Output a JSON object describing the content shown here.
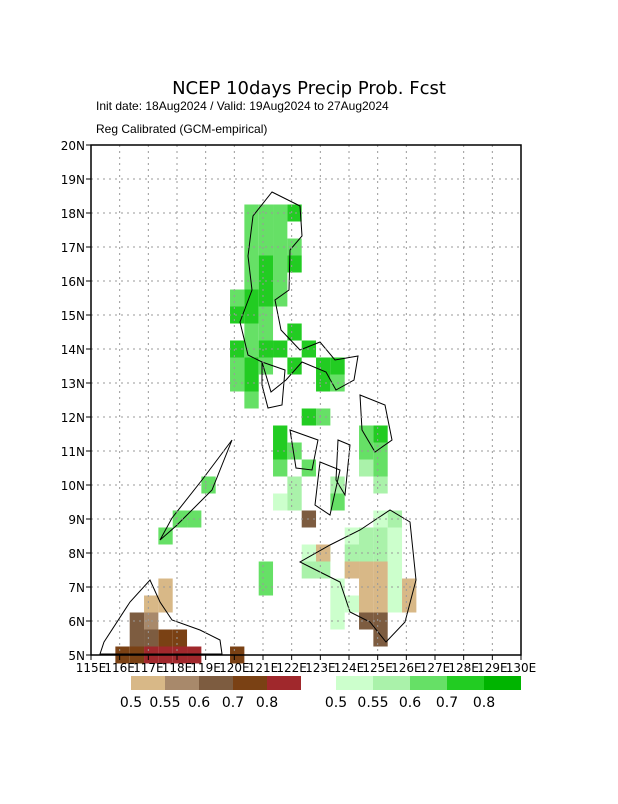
{
  "chart_data": {
    "type": "map",
    "title": "NCEP 10days Precip Prob. Fcst",
    "subtitle": "Init date: 18Aug2024 / Valid: 19Aug2024 to 27Aug2024",
    "note": "Reg Calibrated (GCM-empirical)",
    "xlim": [
      115,
      130
    ],
    "ylim": [
      5,
      20
    ],
    "xticks": [
      {
        "value": 115,
        "label": "115E"
      },
      {
        "value": 116,
        "label": "116E"
      },
      {
        "value": 117,
        "label": "117E"
      },
      {
        "value": 118,
        "label": "118E"
      },
      {
        "value": 119,
        "label": "119E"
      },
      {
        "value": 120,
        "label": "120E"
      },
      {
        "value": 121,
        "label": "121E"
      },
      {
        "value": 122,
        "label": "122E"
      },
      {
        "value": 123,
        "label": "123E"
      },
      {
        "value": 124,
        "label": "124E"
      },
      {
        "value": 125,
        "label": "125E"
      },
      {
        "value": 126,
        "label": "126E"
      },
      {
        "value": 127,
        "label": "127E"
      },
      {
        "value": 128,
        "label": "128E"
      },
      {
        "value": 129,
        "label": "129E"
      },
      {
        "value": 130,
        "label": "130E"
      }
    ],
    "yticks": [
      {
        "value": 5,
        "label": "5N"
      },
      {
        "value": 6,
        "label": "6N"
      },
      {
        "value": 7,
        "label": "7N"
      },
      {
        "value": 8,
        "label": "8N"
      },
      {
        "value": 9,
        "label": "9N"
      },
      {
        "value": 10,
        "label": "10N"
      },
      {
        "value": 11,
        "label": "11N"
      },
      {
        "value": 12,
        "label": "12N"
      },
      {
        "value": 13,
        "label": "13N"
      },
      {
        "value": 14,
        "label": "14N"
      },
      {
        "value": 15,
        "label": "15N"
      },
      {
        "value": 16,
        "label": "16N"
      },
      {
        "value": 17,
        "label": "17N"
      },
      {
        "value": 18,
        "label": "18N"
      },
      {
        "value": 19,
        "label": "19N"
      },
      {
        "value": 20,
        "label": "20N"
      }
    ],
    "grid": true,
    "cell_size": 0.5,
    "levels": [
      0.5,
      0.55,
      0.6,
      0.7,
      0.8
    ],
    "dry_colors": [
      "#d8b887",
      "#a8896b",
      "#7d5c40",
      "#7a4114",
      "#a0282c"
    ],
    "wet_colors": [
      "#ccffcc",
      "#aaf2aa",
      "#66e066",
      "#22cc22",
      "#00b400"
    ],
    "wet_cells": [
      [
        120.6,
        18.0,
        0.65
      ],
      [
        121.1,
        18.0,
        0.65
      ],
      [
        121.6,
        18.0,
        0.65
      ],
      [
        122.1,
        18.0,
        0.75
      ],
      [
        120.6,
        17.5,
        0.65
      ],
      [
        121.1,
        17.5,
        0.65
      ],
      [
        121.6,
        17.5,
        0.65
      ],
      [
        120.6,
        17.0,
        0.65
      ],
      [
        121.1,
        17.0,
        0.65
      ],
      [
        121.6,
        17.0,
        0.65
      ],
      [
        122.1,
        17.0,
        0.65
      ],
      [
        120.6,
        16.5,
        0.65
      ],
      [
        121.1,
        16.5,
        0.75
      ],
      [
        121.6,
        16.5,
        0.65
      ],
      [
        122.1,
        16.5,
        0.75
      ],
      [
        120.6,
        16.0,
        0.65
      ],
      [
        121.1,
        16.0,
        0.75
      ],
      [
        121.6,
        16.0,
        0.65
      ],
      [
        120.1,
        15.5,
        0.65
      ],
      [
        120.6,
        15.5,
        0.75
      ],
      [
        121.1,
        15.5,
        0.75
      ],
      [
        121.6,
        15.5,
        0.65
      ],
      [
        120.1,
        15.0,
        0.75
      ],
      [
        120.6,
        15.0,
        0.75
      ],
      [
        121.1,
        15.0,
        0.65
      ],
      [
        120.6,
        14.5,
        0.65
      ],
      [
        121.1,
        14.5,
        0.65
      ],
      [
        122.1,
        14.5,
        0.75
      ],
      [
        120.1,
        14.0,
        0.75
      ],
      [
        120.6,
        14.0,
        0.65
      ],
      [
        121.1,
        14.0,
        0.75
      ],
      [
        121.6,
        14.0,
        0.75
      ],
      [
        122.6,
        14.0,
        0.75
      ],
      [
        120.1,
        13.5,
        0.65
      ],
      [
        120.6,
        13.5,
        0.75
      ],
      [
        121.1,
        13.5,
        0.65
      ],
      [
        122.1,
        13.5,
        0.75
      ],
      [
        123.1,
        13.5,
        0.75
      ],
      [
        123.6,
        13.5,
        0.75
      ],
      [
        120.1,
        13.0,
        0.65
      ],
      [
        120.6,
        13.0,
        0.75
      ],
      [
        123.1,
        13.0,
        0.75
      ],
      [
        123.6,
        13.0,
        0.65
      ],
      [
        120.6,
        12.5,
        0.65
      ],
      [
        122.6,
        12.0,
        0.75
      ],
      [
        123.1,
        12.0,
        0.65
      ],
      [
        121.6,
        11.5,
        0.75
      ],
      [
        124.6,
        11.5,
        0.65
      ],
      [
        125.1,
        11.5,
        0.75
      ],
      [
        121.6,
        11.0,
        0.75
      ],
      [
        122.1,
        11.0,
        0.65
      ],
      [
        124.6,
        11.0,
        0.65
      ],
      [
        125.1,
        11.0,
        0.65
      ],
      [
        121.6,
        10.5,
        0.65
      ],
      [
        122.6,
        10.5,
        0.65
      ],
      [
        124.6,
        10.5,
        0.57
      ],
      [
        125.1,
        10.5,
        0.65
      ],
      [
        119.1,
        10.0,
        0.65
      ],
      [
        122.1,
        10.0,
        0.57
      ],
      [
        123.6,
        10.0,
        0.57
      ],
      [
        125.1,
        10.0,
        0.57
      ],
      [
        121.6,
        9.5,
        0.52
      ],
      [
        122.1,
        9.5,
        0.57
      ],
      [
        123.6,
        9.5,
        0.65
      ],
      [
        118.1,
        9.0,
        0.65
      ],
      [
        118.6,
        9.0,
        0.65
      ],
      [
        125.1,
        9.0,
        0.52
      ],
      [
        125.6,
        9.0,
        0.57
      ],
      [
        117.6,
        8.5,
        0.65
      ],
      [
        124.1,
        8.5,
        0.52
      ],
      [
        124.6,
        8.5,
        0.57
      ],
      [
        125.1,
        8.5,
        0.57
      ],
      [
        125.6,
        8.5,
        0.52
      ],
      [
        122.6,
        8.0,
        0.52
      ],
      [
        123.1,
        8.0,
        0.57
      ],
      [
        124.1,
        8.0,
        0.57
      ],
      [
        124.6,
        8.0,
        0.57
      ],
      [
        125.1,
        8.0,
        0.57
      ],
      [
        125.6,
        8.0,
        0.52
      ],
      [
        121.1,
        7.5,
        0.65
      ],
      [
        122.6,
        7.5,
        0.57
      ],
      [
        123.1,
        7.5,
        0.57
      ],
      [
        124.1,
        7.5,
        0.57
      ],
      [
        125.6,
        7.5,
        0.52
      ],
      [
        121.1,
        7.0,
        0.65
      ],
      [
        123.6,
        7.0,
        0.52
      ],
      [
        125.6,
        7.0,
        0.52
      ],
      [
        123.6,
        6.5,
        0.52
      ],
      [
        124.1,
        6.5,
        0.52
      ],
      [
        125.6,
        6.5,
        0.52
      ],
      [
        123.6,
        6.0,
        0.52
      ]
    ],
    "dry_cells": [
      [
        122.6,
        9.0,
        0.62
      ],
      [
        123.1,
        8.0,
        0.52
      ],
      [
        124.1,
        7.5,
        0.52
      ],
      [
        124.6,
        7.5,
        0.52
      ],
      [
        125.1,
        7.5,
        0.52
      ],
      [
        124.6,
        7.0,
        0.52
      ],
      [
        125.1,
        7.0,
        0.52
      ],
      [
        126.1,
        7.0,
        0.52
      ],
      [
        124.6,
        6.5,
        0.52
      ],
      [
        125.1,
        6.5,
        0.52
      ],
      [
        126.1,
        6.5,
        0.52
      ],
      [
        124.6,
        6.0,
        0.65
      ],
      [
        125.1,
        6.0,
        0.65
      ],
      [
        125.1,
        5.5,
        0.65
      ],
      [
        117.6,
        7.0,
        0.52
      ],
      [
        117.1,
        6.5,
        0.52
      ],
      [
        117.6,
        6.5,
        0.52
      ],
      [
        116.6,
        6.0,
        0.65
      ],
      [
        117.1,
        6.0,
        0.57
      ],
      [
        116.6,
        5.5,
        0.65
      ],
      [
        117.1,
        5.5,
        0.65
      ],
      [
        117.6,
        5.5,
        0.75
      ],
      [
        118.1,
        5.5,
        0.75
      ],
      [
        116.1,
        5.0,
        0.75
      ],
      [
        116.6,
        5.0,
        0.75
      ],
      [
        117.1,
        5.0,
        0.85
      ],
      [
        117.6,
        5.0,
        0.85
      ],
      [
        118.1,
        5.0,
        0.85
      ],
      [
        118.6,
        5.0,
        0.85
      ],
      [
        120.1,
        5.0,
        0.75
      ]
    ]
  }
}
